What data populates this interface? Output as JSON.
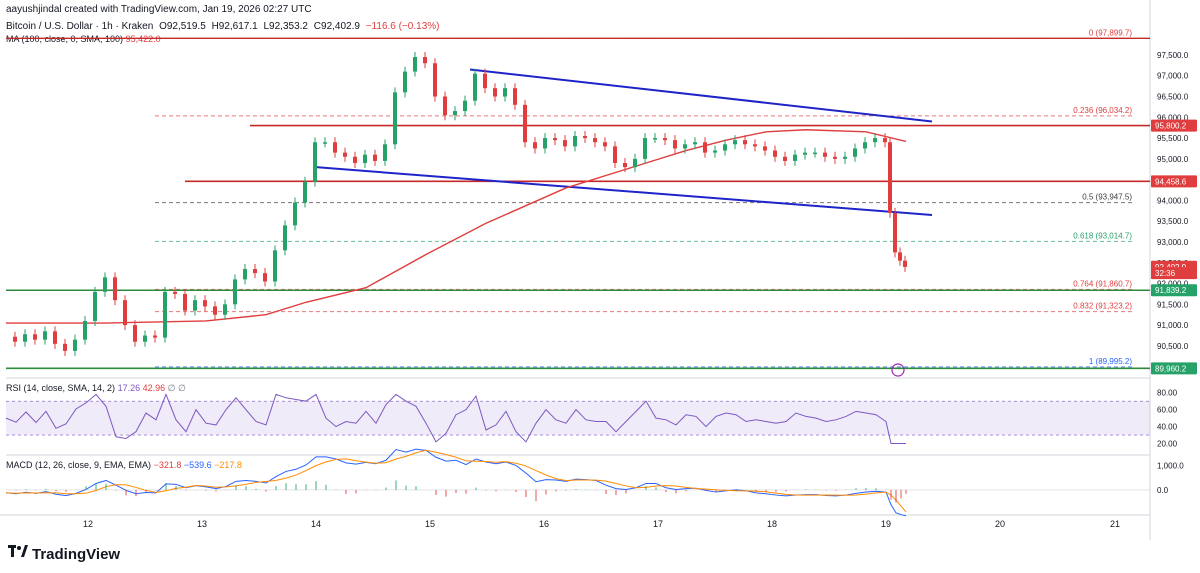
{
  "header": {
    "created": "aayushjindal created with TradingView.com, Jan 19, 2026 02:27 UTC",
    "symbol": "Bitcoin / U.S. Dollar · 1h · Kraken",
    "open": "O92,519.5",
    "high": "H92,617.1",
    "low": "L92,353.2",
    "close": "C92,402.9",
    "change": "−116.6 (−0.13%)",
    "ma_label": "MA (100, close, 0, SMA, 100)",
    "ma_value": "95,422.0"
  },
  "rsi": {
    "label": "RSI (14, close, SMA, 14, 2)",
    "value": "17.26",
    "ma_value": "42.96",
    "extra": "∅ ∅"
  },
  "macd": {
    "label": "MACD (12, 26, close, 9, EMA, EMA)",
    "macd": "−321.8",
    "signal": "−539.6",
    "hist": "−217.8"
  },
  "brand": {
    "name": "TradingView"
  },
  "chart_data": {
    "type": "candlestick",
    "x_ticks": [
      "12",
      "13",
      "14",
      "15",
      "16",
      "17",
      "18",
      "19",
      "20",
      "21"
    ],
    "y_ticks": [
      "97,500.0",
      "97,000.0",
      "96,500.0",
      "96,000.0",
      "95,500.0",
      "95,000.0",
      "94,500.0",
      "94,000.0",
      "93,500.0",
      "93,000.0",
      "92,500.0",
      "92,000.0",
      "91,500.0",
      "91,000.0",
      "90,500.0",
      "90,000.0"
    ],
    "ylim": [
      89800,
      98100
    ],
    "fib_levels": [
      {
        "label": "0 (97,899.7)",
        "value": 97899.7
      },
      {
        "label": "0.236 (96,034.2)",
        "value": 96034.2
      },
      {
        "label": "0.5 (93,947.5)",
        "value": 93947.5
      },
      {
        "label": "0.618 (93,014.7)",
        "value": 93014.7
      },
      {
        "label": "0.764 (91,860.7)",
        "value": 91860.7
      },
      {
        "label": "0.832 (91,323.2)",
        "value": 91323.2
      },
      {
        "label": "1 (89,995.2)",
        "value": 89995.2
      }
    ],
    "price_badges": [
      {
        "label": "95,800.2",
        "value": 95800.2,
        "color": "#e03e3e"
      },
      {
        "label": "94,458.6",
        "value": 94458.6,
        "color": "#e03e3e"
      },
      {
        "label": "92,402.9",
        "value": 92402.9,
        "color": "#e03e3e"
      },
      {
        "label": "32:36",
        "value": 92250,
        "color": "#e03e3e"
      },
      {
        "label": "91,839.2",
        "value": 91839.2,
        "color": "#26a269"
      },
      {
        "label": "89,960.2",
        "value": 89960.2,
        "color": "#26a269"
      }
    ],
    "resistance_lines": [
      95800.2,
      94458.6
    ],
    "support_lines": [
      91839.2,
      89960.2
    ],
    "rsi_ticks": [
      "80.00",
      "60.00",
      "40.00",
      "20.00"
    ],
    "macd_ticks": [
      "1,000.0",
      "0.0"
    ],
    "colors": {
      "up": "#26a269",
      "down": "#e03e3e",
      "ma": "#e03e3e",
      "trend": "#1f24c9",
      "rsi": "#7e57c2",
      "macd": "#2962ff",
      "signal": "#ff8c00"
    },
    "close_path": [
      [
        0,
        90720
      ],
      [
        10,
        90600
      ],
      [
        20,
        90780
      ],
      [
        30,
        90650
      ],
      [
        40,
        90850
      ],
      [
        50,
        90550
      ],
      [
        60,
        90380
      ],
      [
        70,
        90650
      ],
      [
        80,
        91100
      ],
      [
        90,
        91800
      ],
      [
        100,
        92150
      ],
      [
        110,
        91600
      ],
      [
        120,
        91000
      ],
      [
        130,
        90600
      ],
      [
        140,
        90750
      ],
      [
        150,
        90700
      ],
      [
        160,
        91800
      ],
      [
        170,
        91750
      ],
      [
        180,
        91350
      ],
      [
        190,
        91600
      ],
      [
        200,
        91450
      ],
      [
        210,
        91250
      ],
      [
        220,
        91500
      ],
      [
        230,
        92100
      ],
      [
        240,
        92350
      ],
      [
        250,
        92250
      ],
      [
        260,
        92050
      ],
      [
        270,
        92800
      ],
      [
        280,
        93400
      ],
      [
        290,
        93950
      ],
      [
        300,
        94450
      ],
      [
        310,
        95400
      ],
      [
        320,
        95400
      ],
      [
        330,
        95150
      ],
      [
        340,
        95050
      ],
      [
        350,
        94900
      ],
      [
        360,
        95100
      ],
      [
        370,
        94950
      ],
      [
        380,
        95350
      ],
      [
        390,
        96600
      ],
      [
        400,
        97100
      ],
      [
        410,
        97450
      ],
      [
        420,
        97300
      ],
      [
        430,
        96500
      ],
      [
        440,
        96050
      ],
      [
        450,
        96150
      ],
      [
        460,
        96400
      ],
      [
        470,
        97050
      ],
      [
        480,
        96700
      ],
      [
        490,
        96500
      ],
      [
        500,
        96700
      ],
      [
        510,
        96300
      ],
      [
        520,
        95400
      ],
      [
        530,
        95250
      ],
      [
        540,
        95500
      ],
      [
        550,
        95450
      ],
      [
        560,
        95300
      ],
      [
        570,
        95550
      ],
      [
        580,
        95500
      ],
      [
        590,
        95400
      ],
      [
        600,
        95300
      ],
      [
        610,
        94900
      ],
      [
        620,
        94800
      ],
      [
        630,
        95000
      ],
      [
        640,
        95500
      ],
      [
        650,
        95500
      ],
      [
        660,
        95450
      ],
      [
        670,
        95250
      ],
      [
        680,
        95350
      ],
      [
        690,
        95400
      ],
      [
        700,
        95150
      ],
      [
        710,
        95200
      ],
      [
        720,
        95350
      ],
      [
        730,
        95450
      ],
      [
        740,
        95350
      ],
      [
        750,
        95300
      ],
      [
        760,
        95200
      ],
      [
        770,
        95050
      ],
      [
        780,
        94950
      ],
      [
        790,
        95100
      ],
      [
        800,
        95150
      ],
      [
        810,
        95150
      ],
      [
        820,
        95050
      ],
      [
        830,
        95000
      ],
      [
        840,
        95050
      ],
      [
        850,
        95250
      ],
      [
        860,
        95400
      ],
      [
        870,
        95500
      ],
      [
        880,
        95400
      ],
      [
        885,
        93700
      ],
      [
        890,
        92750
      ],
      [
        895,
        92550
      ],
      [
        900,
        92400
      ]
    ],
    "ma_path": [
      [
        0,
        91050
      ],
      [
        100,
        91050
      ],
      [
        200,
        91100
      ],
      [
        260,
        91250
      ],
      [
        300,
        91550
      ],
      [
        360,
        91900
      ],
      [
        420,
        92700
      ],
      [
        480,
        93450
      ],
      [
        560,
        94300
      ],
      [
        620,
        94750
      ],
      [
        680,
        95200
      ],
      [
        720,
        95450
      ],
      [
        760,
        95650
      ],
      [
        800,
        95700
      ],
      [
        860,
        95650
      ],
      [
        900,
        95420
      ]
    ]
  }
}
